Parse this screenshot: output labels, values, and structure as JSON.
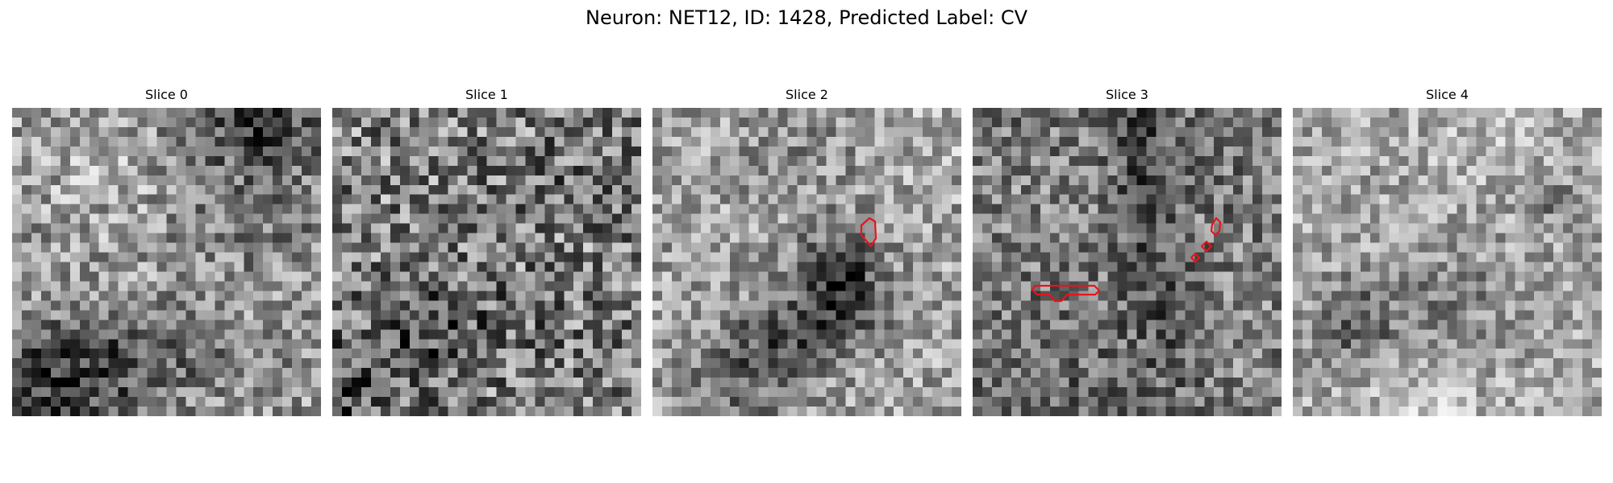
{
  "figure": {
    "title": "Neuron: NET12, ID: 1428, Predicted Label: CV"
  },
  "slices": [
    {
      "label": "Slice 0"
    },
    {
      "label": "Slice 1"
    },
    {
      "label": "Slice 2"
    },
    {
      "label": "Slice 3"
    },
    {
      "label": "Slice 4"
    }
  ],
  "colors": {
    "contour": "#e8141a",
    "background": "#ffffff"
  },
  "colormap": "gray"
}
